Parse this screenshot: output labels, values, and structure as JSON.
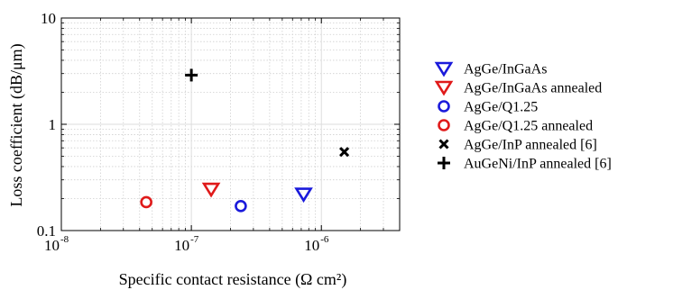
{
  "chart_data": {
    "type": "scatter",
    "xscale": "log",
    "yscale": "log",
    "xlim": [
      1e-08,
      4e-06
    ],
    "ylim": [
      0.1,
      10
    ],
    "grid": true,
    "legend_position": "right",
    "xlabel": "Specific contact resistance (Ω cm²)",
    "ylabel": "Loss coefficient (dB/μm)",
    "x_tick_labels": [
      {
        "base": "10",
        "exp": "-8"
      },
      {
        "base": "10",
        "exp": "-7"
      },
      {
        "base": "10",
        "exp": "-6"
      }
    ],
    "y_tick_labels": [
      "0.1",
      "1",
      "10"
    ],
    "series": [
      {
        "name": "AgGe/InGaAs",
        "marker": "triangle-down",
        "color": "#1a1adb",
        "points": [
          {
            "x": 7.3e-07,
            "y": 0.22
          }
        ]
      },
      {
        "name": "AgGe/InGaAs annealed",
        "marker": "triangle-down",
        "color": "#e01a1a",
        "points": [
          {
            "x": 1.42e-07,
            "y": 0.245
          }
        ]
      },
      {
        "name": "AgGe/Q1.25",
        "marker": "circle",
        "color": "#1a1adb",
        "points": [
          {
            "x": 2.4e-07,
            "y": 0.17
          }
        ]
      },
      {
        "name": "AgGe/Q1.25 annealed",
        "marker": "circle",
        "color": "#e01a1a",
        "points": [
          {
            "x": 4.5e-08,
            "y": 0.185
          }
        ]
      },
      {
        "name": "AgGe/InP annealed [6]",
        "marker": "x",
        "color": "#000000",
        "points": [
          {
            "x": 1.5e-06,
            "y": 0.55
          }
        ]
      },
      {
        "name": "AuGeNi/InP annealed [6]",
        "marker": "plus",
        "color": "#000000",
        "points": [
          {
            "x": 1e-07,
            "y": 2.9
          }
        ]
      }
    ]
  }
}
